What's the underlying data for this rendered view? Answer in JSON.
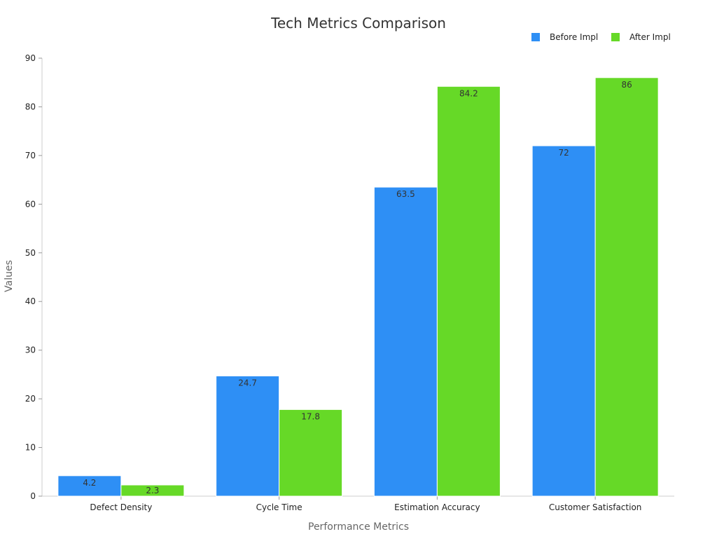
{
  "chart_data": {
    "type": "bar",
    "title": "Tech Metrics Comparison",
    "xlabel": "Performance Metrics",
    "ylabel": "Values",
    "ylim": [
      0,
      90
    ],
    "yticks": [
      0,
      10,
      20,
      30,
      40,
      50,
      60,
      70,
      80,
      90
    ],
    "categories": [
      "Defect Density",
      "Cycle Time",
      "Estimation Accuracy",
      "Customer Satisfaction"
    ],
    "legend_position": "top-right",
    "grid": false,
    "series": [
      {
        "name": "Before Impl",
        "color": "#2e8ff5",
        "values": [
          4.2,
          24.7,
          63.5,
          72
        ],
        "labels": [
          "4.2",
          "24.7",
          "63.5",
          "72"
        ]
      },
      {
        "name": "After Impl",
        "color": "#66d927",
        "values": [
          2.3,
          17.8,
          84.2,
          86
        ],
        "labels": [
          "2.3",
          "17.8",
          "84.2",
          "86"
        ]
      }
    ]
  }
}
